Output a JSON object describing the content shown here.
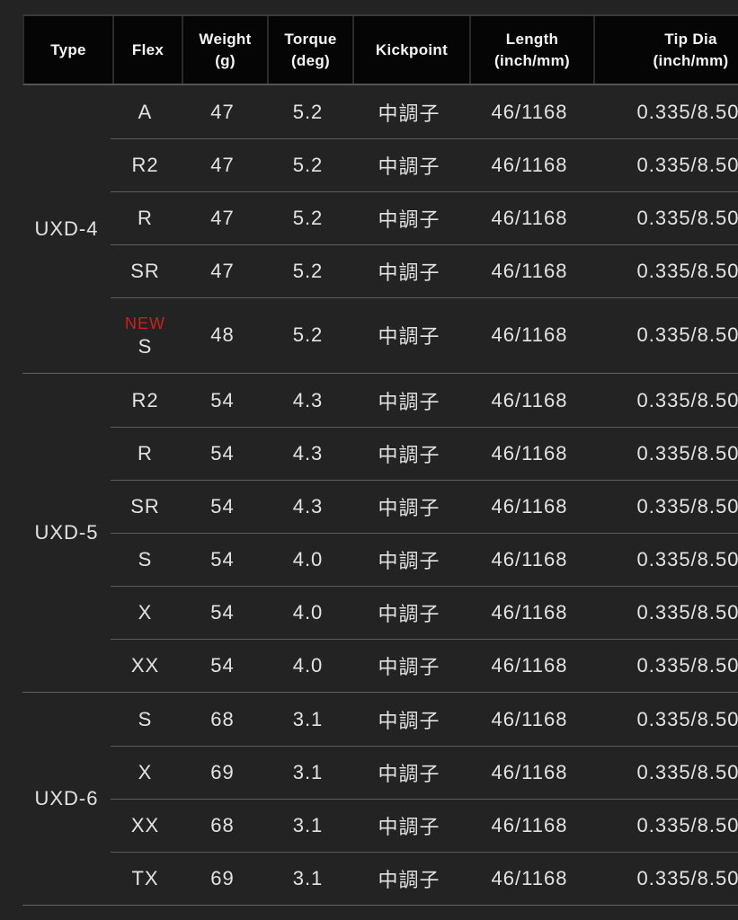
{
  "table": {
    "new_badge_color": "#d01e1e",
    "kickpoint_value_meaning": "mid kickpoint",
    "columns": [
      {
        "label": "Type"
      },
      {
        "label": "Flex"
      },
      {
        "label": "Weight",
        "sub": "(g)"
      },
      {
        "label": "Torque",
        "sub": "(deg)"
      },
      {
        "label": "Kickpoint"
      },
      {
        "label": "Length",
        "sub": "(inch/mm)"
      },
      {
        "label": "Tip Dia",
        "sub": "(inch/mm)"
      }
    ],
    "groups": [
      {
        "type": "UXD-4",
        "rows": [
          {
            "flex": "A",
            "weight": "47",
            "torque": "5.2",
            "kickpoint": "中調子",
            "length": "46/1168",
            "tip_dia": "0.335/8.50"
          },
          {
            "flex": "R2",
            "weight": "47",
            "torque": "5.2",
            "kickpoint": "中調子",
            "length": "46/1168",
            "tip_dia": "0.335/8.50"
          },
          {
            "flex": "R",
            "weight": "47",
            "torque": "5.2",
            "kickpoint": "中調子",
            "length": "46/1168",
            "tip_dia": "0.335/8.50"
          },
          {
            "flex": "SR",
            "weight": "47",
            "torque": "5.2",
            "kickpoint": "中調子",
            "length": "46/1168",
            "tip_dia": "0.335/8.50"
          },
          {
            "badge": "NEW",
            "flex": "S",
            "weight": "48",
            "torque": "5.2",
            "kickpoint": "中調子",
            "length": "46/1168",
            "tip_dia": "0.335/8.50"
          }
        ]
      },
      {
        "type": "UXD-5",
        "rows": [
          {
            "flex": "R2",
            "weight": "54",
            "torque": "4.3",
            "kickpoint": "中調子",
            "length": "46/1168",
            "tip_dia": "0.335/8.50"
          },
          {
            "flex": "R",
            "weight": "54",
            "torque": "4.3",
            "kickpoint": "中調子",
            "length": "46/1168",
            "tip_dia": "0.335/8.50"
          },
          {
            "flex": "SR",
            "weight": "54",
            "torque": "4.3",
            "kickpoint": "中調子",
            "length": "46/1168",
            "tip_dia": "0.335/8.50"
          },
          {
            "flex": "S",
            "weight": "54",
            "torque": "4.0",
            "kickpoint": "中調子",
            "length": "46/1168",
            "tip_dia": "0.335/8.50"
          },
          {
            "flex": "X",
            "weight": "54",
            "torque": "4.0",
            "kickpoint": "中調子",
            "length": "46/1168",
            "tip_dia": "0.335/8.50"
          },
          {
            "flex": "XX",
            "weight": "54",
            "torque": "4.0",
            "kickpoint": "中調子",
            "length": "46/1168",
            "tip_dia": "0.335/8.50"
          }
        ]
      },
      {
        "type": "UXD-6",
        "rows": [
          {
            "flex": "S",
            "weight": "68",
            "torque": "3.1",
            "kickpoint": "中調子",
            "length": "46/1168",
            "tip_dia": "0.335/8.50"
          },
          {
            "flex": "X",
            "weight": "69",
            "torque": "3.1",
            "kickpoint": "中調子",
            "length": "46/1168",
            "tip_dia": "0.335/8.50"
          },
          {
            "flex": "XX",
            "weight": "68",
            "torque": "3.1",
            "kickpoint": "中調子",
            "length": "46/1168",
            "tip_dia": "0.335/8.50"
          },
          {
            "flex": "TX",
            "weight": "69",
            "torque": "3.1",
            "kickpoint": "中調子",
            "length": "46/1168",
            "tip_dia": "0.335/8.50"
          }
        ]
      }
    ]
  }
}
